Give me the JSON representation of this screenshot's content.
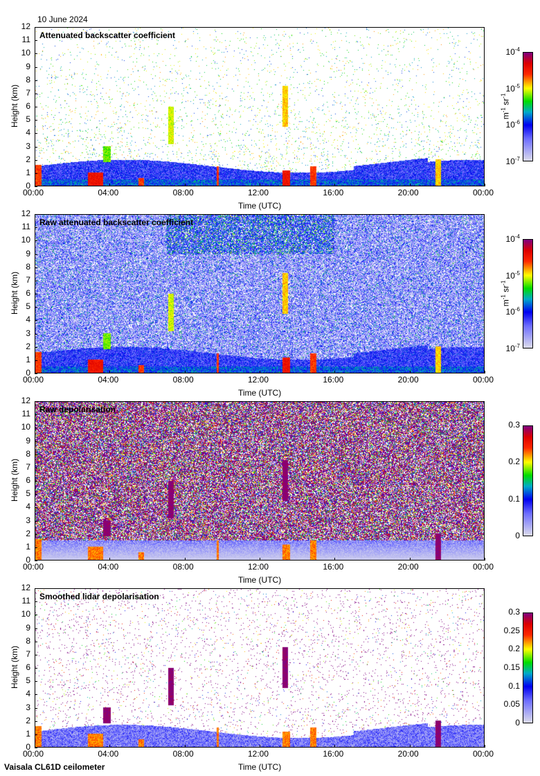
{
  "date": "10 June 2024",
  "footer": "Vaisala CL61D ceilometer",
  "chart_data": [
    {
      "type": "heatmap",
      "title": "Attenuated backscatter coefficient",
      "xlabel": "Time (UTC)",
      "ylabel": "Height (km)",
      "xticks": [
        "00:00",
        "04:00",
        "08:00",
        "12:00",
        "16:00",
        "20:00",
        "00:00"
      ],
      "ylim": [
        0,
        12
      ],
      "yticks": [
        "0",
        "1",
        "2",
        "3",
        "4",
        "5",
        "6",
        "7",
        "8",
        "9",
        "10",
        "11",
        "12"
      ],
      "colorbar": {
        "label": "m-1 sr-1",
        "scale": "log",
        "range": [
          1e-07,
          0.0001
        ],
        "ticks": [
          "10-7",
          "10-6",
          "10-5",
          "10-4"
        ]
      }
    },
    {
      "type": "heatmap",
      "title": "Raw attenuated backscatter coefficient",
      "xlabel": "Time (UTC)",
      "ylabel": "Height (km)",
      "xticks": [
        "00:00",
        "04:00",
        "08:00",
        "12:00",
        "16:00",
        "20:00",
        "00:00"
      ],
      "ylim": [
        0,
        12
      ],
      "yticks": [
        "0",
        "1",
        "2",
        "3",
        "4",
        "5",
        "6",
        "7",
        "8",
        "9",
        "10",
        "11",
        "12"
      ],
      "colorbar": {
        "label": "m-1 sr-1",
        "scale": "log",
        "range": [
          1e-07,
          0.0001
        ],
        "ticks": [
          "10-7",
          "10-6",
          "10-5",
          "10-4"
        ]
      }
    },
    {
      "type": "heatmap",
      "title": "Raw depolarisation",
      "xlabel": "Time (UTC)",
      "ylabel": "Height (km)",
      "xticks": [
        "00:00",
        "04:00",
        "08:00",
        "12:00",
        "16:00",
        "20:00",
        "00:00"
      ],
      "ylim": [
        0,
        12
      ],
      "yticks": [
        "0",
        "1",
        "2",
        "3",
        "4",
        "5",
        "6",
        "7",
        "8",
        "9",
        "10",
        "11",
        "12"
      ],
      "colorbar": {
        "label": "",
        "scale": "linear",
        "range": [
          0,
          0.3
        ],
        "ticks": [
          "0",
          "0.1",
          "0.2",
          "0.3"
        ]
      }
    },
    {
      "type": "heatmap",
      "title": "Smoothed lidar depolarisation",
      "xlabel": "Time (UTC)",
      "ylabel": "Height (km)",
      "xticks": [
        "00:00",
        "04:00",
        "08:00",
        "12:00",
        "16:00",
        "20:00",
        "00:00"
      ],
      "ylim": [
        0,
        12
      ],
      "yticks": [
        "0",
        "1",
        "2",
        "3",
        "4",
        "5",
        "6",
        "7",
        "8",
        "9",
        "10",
        "11",
        "12"
      ],
      "colorbar": {
        "label": "",
        "scale": "linear",
        "range": [
          0,
          0.3
        ],
        "ticks": [
          "0",
          "0.05",
          "0.1",
          "0.15",
          "0.2",
          "0.25",
          "0.3"
        ]
      }
    }
  ]
}
